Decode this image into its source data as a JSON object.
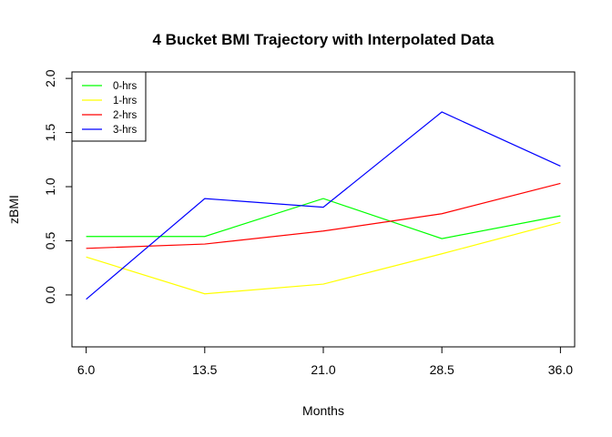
{
  "chart_data": {
    "type": "line",
    "title": "4 Bucket BMI Trajectory with Interpolated Data",
    "xlabel": "Months",
    "ylabel": "zBMI",
    "x": [
      6.0,
      13.5,
      21.0,
      28.5,
      36.0
    ],
    "x_tick_labels": [
      "6.0",
      "13.5",
      "21.0",
      "28.5",
      "36.0"
    ],
    "y_ticks": [
      0.0,
      0.5,
      1.0,
      1.5,
      2.0
    ],
    "y_tick_labels": [
      "0.0",
      "0.5",
      "1.0",
      "1.5",
      "2.0"
    ],
    "xlim": [
      5.1,
      36.9
    ],
    "ylim": [
      -0.48,
      2.06
    ],
    "grid": false,
    "legend_position": "top-left",
    "series": [
      {
        "name": "0-hrs",
        "color": "#00ff00",
        "values": [
          0.54,
          0.54,
          0.89,
          0.52,
          0.73
        ]
      },
      {
        "name": "1-hrs",
        "color": "#ffff00",
        "values": [
          0.35,
          0.01,
          0.1,
          0.38,
          0.67
        ]
      },
      {
        "name": "2-hrs",
        "color": "#ff0000",
        "values": [
          0.43,
          0.47,
          0.59,
          0.75,
          1.03
        ]
      },
      {
        "name": "3-hrs",
        "color": "#0000ff",
        "values": [
          -0.04,
          0.89,
          0.81,
          1.69,
          1.19
        ]
      }
    ]
  }
}
